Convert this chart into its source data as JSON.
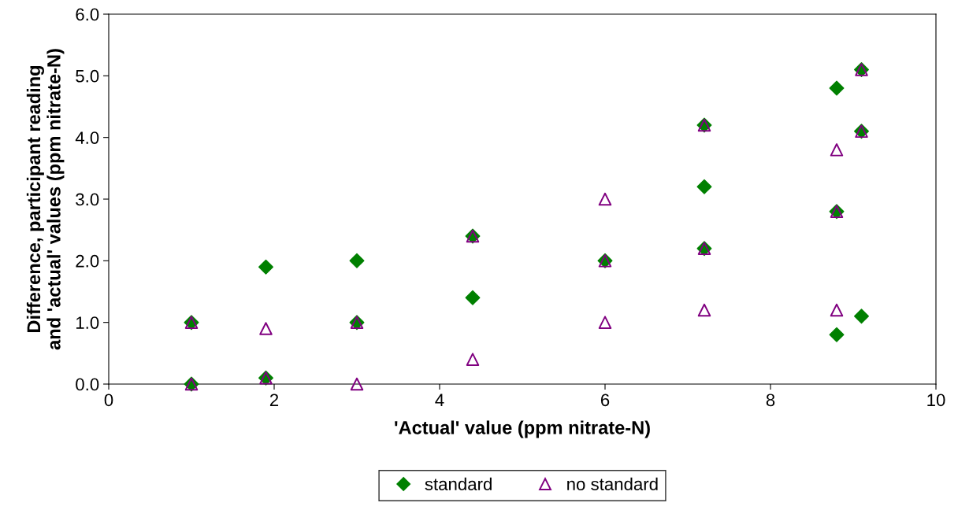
{
  "chart_data": {
    "type": "scatter",
    "xlabel": "'Actual' value (ppm nitrate-N)",
    "ylabel": "Difference, participant reading\nand 'actual' values (ppm nitrate-N)",
    "xlim": [
      0,
      10
    ],
    "xticks": [
      0,
      2,
      4,
      6,
      8,
      10
    ],
    "ylim": [
      0,
      6
    ],
    "yticks": [
      {
        "value": 0,
        "label": "0.0"
      },
      {
        "value": 1,
        "label": "1.0"
      },
      {
        "value": 2,
        "label": "2.0"
      },
      {
        "value": 3,
        "label": "3.0"
      },
      {
        "value": 4,
        "label": "4.0"
      },
      {
        "value": 5,
        "label": "5.0"
      },
      {
        "value": 6,
        "label": "6.0"
      }
    ],
    "grid": false,
    "legend": "bottom",
    "series": [
      {
        "name": "standard",
        "color": "#008000",
        "marker": "diamond",
        "x": [
          1,
          1,
          1.9,
          1.9,
          3,
          3,
          4.4,
          4.4,
          6,
          7.2,
          7.2,
          7.2,
          8.8,
          8.8,
          8.8,
          9.1,
          9.1,
          9.1
        ],
        "values": [
          1.0,
          0.0,
          1.9,
          0.1,
          2.0,
          1.0,
          2.4,
          1.4,
          2.0,
          4.2,
          3.2,
          2.2,
          4.8,
          2.8,
          0.8,
          5.1,
          4.1,
          1.1
        ]
      },
      {
        "name": "no standard",
        "color": "#800080",
        "marker": "triangle",
        "x": [
          1,
          1,
          1.9,
          1.9,
          3,
          3,
          4.4,
          4.4,
          6,
          6,
          6,
          7.2,
          7.2,
          7.2,
          8.8,
          8.8,
          8.8,
          9.1,
          9.1
        ],
        "values": [
          1.0,
          0.0,
          0.9,
          0.1,
          1.0,
          0.0,
          2.4,
          0.4,
          3.0,
          2.0,
          1.0,
          4.2,
          2.2,
          1.2,
          3.8,
          2.8,
          1.2,
          5.1,
          4.1
        ]
      }
    ]
  }
}
